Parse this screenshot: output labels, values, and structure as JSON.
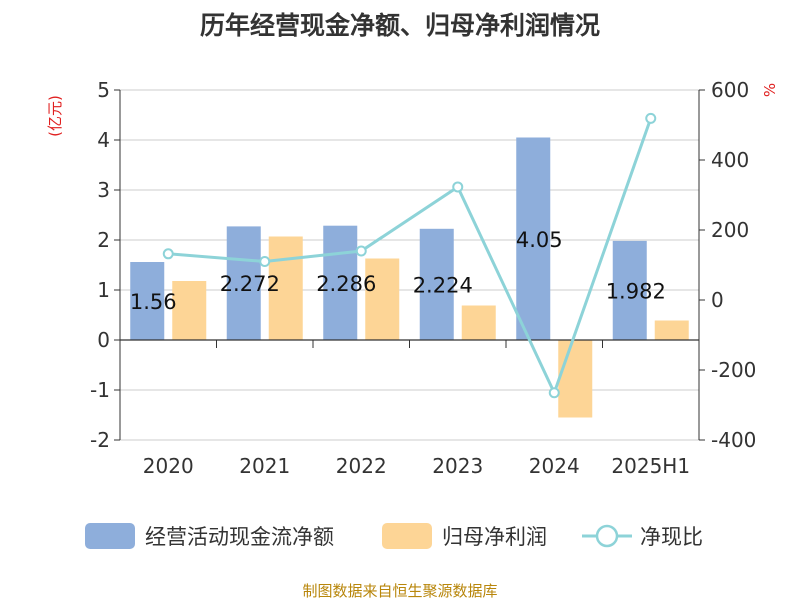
{
  "chart_data": {
    "type": "bar",
    "title": "历年经营现金净额、归母净利润情况",
    "categories": [
      "2020",
      "2021",
      "2022",
      "2023",
      "2024",
      "2025H1"
    ],
    "y_left": {
      "unit": "(亿元)",
      "range": [
        -2,
        5
      ],
      "ticks": [
        "5",
        "4",
        "3",
        "2",
        "1",
        "0",
        "-1",
        "-2"
      ]
    },
    "y_right": {
      "unit": "%",
      "range": [
        -400,
        600
      ],
      "ticks": [
        "600",
        "400",
        "200",
        "0",
        "-200",
        "-400"
      ]
    },
    "series": [
      {
        "name": "经营活动现金流净额",
        "type": "bar",
        "axis": "left",
        "color": "#8eaedb",
        "values": [
          1.56,
          2.272,
          2.286,
          2.224,
          4.05,
          1.982
        ],
        "labels": [
          "1.56",
          "2.272",
          "2.286",
          "2.224",
          "4.05",
          "1.982"
        ]
      },
      {
        "name": "归母净利润",
        "type": "bar",
        "axis": "left",
        "color": "#fdd596",
        "values": [
          1.18,
          2.07,
          1.63,
          0.69,
          -1.55,
          0.39
        ]
      },
      {
        "name": "净现比",
        "type": "line",
        "axis": "right",
        "color": "#8dd3d8",
        "values": [
          132,
          110,
          140,
          323,
          -265,
          519
        ]
      }
    ],
    "grid": true,
    "legend_position": "bottom"
  },
  "source": "制图数据来自恒生聚源数据库"
}
